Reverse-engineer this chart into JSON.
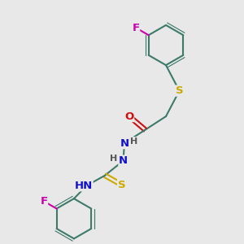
{
  "bg_color": "#e8e8e8",
  "bond_color": "#3d7a6a",
  "bond_width": 1.5,
  "atom_colors": {
    "C": "#3d7a6a",
    "N": "#1010cc",
    "O": "#cc1010",
    "S": "#ccaa00",
    "F": "#cc00aa",
    "H": "#555555"
  },
  "figsize": [
    3.0,
    3.0
  ],
  "dpi": 100,
  "xlim": [
    0,
    10
  ],
  "ylim": [
    0,
    10
  ]
}
